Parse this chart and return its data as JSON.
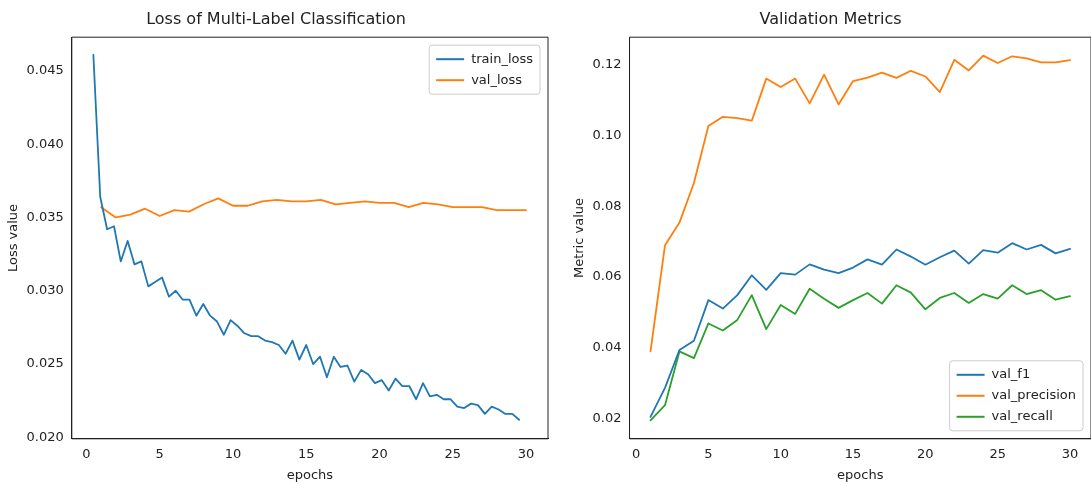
{
  "chart_data": [
    {
      "type": "line",
      "title": "Loss of Multi-Label Classification",
      "xlabel": "epochs",
      "ylabel": "Loss value",
      "legend": "top right",
      "xlim": [
        -1.0,
        31.5
      ],
      "xticks": [
        0,
        5,
        10,
        15,
        20,
        25,
        30
      ],
      "ylim": [
        0.0199,
        0.0473
      ],
      "yticks": [
        {
          "value": 0.02,
          "label": "0.020"
        },
        {
          "value": 0.025,
          "label": "0.025"
        },
        {
          "value": 0.03,
          "label": "0.030"
        },
        {
          "value": 0.035,
          "label": "0.035"
        },
        {
          "value": 0.04,
          "label": "0.040"
        },
        {
          "value": 0.045,
          "label": "0.045"
        }
      ],
      "series": [
        {
          "name": "train_loss",
          "color": "#1f77b4",
          "x": [
            0.47,
            0.94,
            1.41,
            1.88,
            2.34,
            2.81,
            3.28,
            3.75,
            4.22,
            4.69,
            5.16,
            5.63,
            6.09,
            6.56,
            7.03,
            7.5,
            7.97,
            8.44,
            8.91,
            9.38,
            9.84,
            10.31,
            10.78,
            11.25,
            11.72,
            12.19,
            12.66,
            13.13,
            13.59,
            14.06,
            14.53,
            15,
            15.47,
            15.94,
            16.41,
            16.88,
            17.34,
            17.81,
            18.28,
            18.75,
            19.22,
            19.69,
            20.16,
            20.63,
            21.09,
            21.56,
            22.03,
            22.5,
            22.97,
            23.44,
            23.91,
            24.38,
            24.84,
            25.31,
            25.78,
            26.25,
            26.72,
            27.19,
            27.66,
            28.13,
            28.59,
            29.06,
            29.53
          ],
          "values": [
            0.0461,
            0.0364,
            0.0342,
            0.0344,
            0.032,
            0.0334,
            0.0318,
            0.032,
            0.0303,
            0.0306,
            0.0309,
            0.0296,
            0.03,
            0.0294,
            0.0294,
            0.0283,
            0.0291,
            0.0283,
            0.0279,
            0.027,
            0.028,
            0.0276,
            0.0271,
            0.0269,
            0.0269,
            0.0266,
            0.0265,
            0.0263,
            0.0257,
            0.0266,
            0.0253,
            0.0263,
            0.025,
            0.0255,
            0.0241,
            0.0255,
            0.0248,
            0.0249,
            0.0238,
            0.0246,
            0.0243,
            0.0237,
            0.0239,
            0.0232,
            0.024,
            0.0235,
            0.0235,
            0.0226,
            0.0237,
            0.0228,
            0.0229,
            0.0226,
            0.0226,
            0.0221,
            0.022,
            0.0223,
            0.0222,
            0.0216,
            0.0221,
            0.0219,
            0.0216,
            0.0216,
            0.0212
          ]
        },
        {
          "name": "val_loss",
          "color": "#ff7f0e",
          "x": [
            1,
            2,
            3,
            4,
            5,
            6,
            7,
            8,
            9,
            10,
            11,
            12,
            13,
            14,
            15,
            16,
            17,
            18,
            19,
            20,
            21,
            22,
            23,
            24,
            25,
            26,
            27,
            28,
            29,
            30
          ],
          "values": [
            0.0357,
            0.035,
            0.0352,
            0.0356,
            0.0351,
            0.0355,
            0.0354,
            0.0359,
            0.0363,
            0.0358,
            0.0358,
            0.0361,
            0.0362,
            0.0361,
            0.0361,
            0.0362,
            0.0359,
            0.036,
            0.0361,
            0.036,
            0.036,
            0.0357,
            0.036,
            0.0359,
            0.0357,
            0.0357,
            0.0357,
            0.0355,
            0.0355,
            0.0355
          ]
        }
      ]
    },
    {
      "type": "line",
      "title": "Validation Metrics",
      "xlabel": "epochs",
      "ylabel": "Metric value",
      "legend": "bottom right",
      "x": [
        1,
        2,
        3,
        4,
        5,
        6,
        7,
        8,
        9,
        10,
        11,
        12,
        13,
        14,
        15,
        16,
        17,
        18,
        19,
        20,
        21,
        22,
        23,
        24,
        25,
        26,
        27,
        28,
        29,
        30
      ],
      "xlim": [
        -0.45,
        31.45
      ],
      "xticks": [
        0,
        5,
        10,
        15,
        20,
        25,
        30
      ],
      "ylim": [
        0.0143,
        0.1278
      ],
      "yticks": [
        {
          "value": 0.02,
          "label": "0.02"
        },
        {
          "value": 0.04,
          "label": "0.04"
        },
        {
          "value": 0.06,
          "label": "0.06"
        },
        {
          "value": 0.08,
          "label": "0.08"
        },
        {
          "value": 0.1,
          "label": "0.10"
        },
        {
          "value": 0.12,
          "label": "0.12"
        }
      ],
      "series": [
        {
          "name": "val_f1",
          "color": "#1f77b4",
          "values": [
            0.0205,
            0.0287,
            0.0394,
            0.042,
            0.0535,
            0.0511,
            0.0549,
            0.0605,
            0.0564,
            0.0611,
            0.0607,
            0.0636,
            0.0621,
            0.0611,
            0.0627,
            0.065,
            0.0635,
            0.0678,
            0.0658,
            0.0635,
            0.0656,
            0.0675,
            0.0638,
            0.0676,
            0.0669,
            0.0696,
            0.0678,
            0.0691,
            0.0667,
            0.068
          ]
        },
        {
          "name": "val_precision",
          "color": "#ff7f0e",
          "values": [
            0.039,
            0.069,
            0.0754,
            0.0866,
            0.1027,
            0.1053,
            0.1049,
            0.1042,
            0.1161,
            0.1137,
            0.1161,
            0.1091,
            0.1172,
            0.1088,
            0.1154,
            0.1164,
            0.1178,
            0.1163,
            0.1183,
            0.1167,
            0.1123,
            0.1214,
            0.1184,
            0.1226,
            0.1205,
            0.1224,
            0.1218,
            0.1207,
            0.1207,
            0.1213
          ]
        },
        {
          "name": "val_recall",
          "color": "#2ca02c",
          "values": [
            0.0195,
            0.0238,
            0.039,
            0.0371,
            0.0469,
            0.0449,
            0.0479,
            0.0549,
            0.0453,
            0.0521,
            0.0496,
            0.0567,
            0.0539,
            0.0513,
            0.0535,
            0.0555,
            0.0525,
            0.0577,
            0.0556,
            0.0509,
            0.0541,
            0.0555,
            0.0527,
            0.0552,
            0.0539,
            0.0577,
            0.0552,
            0.0563,
            0.0536,
            0.0546
          ]
        }
      ]
    }
  ]
}
